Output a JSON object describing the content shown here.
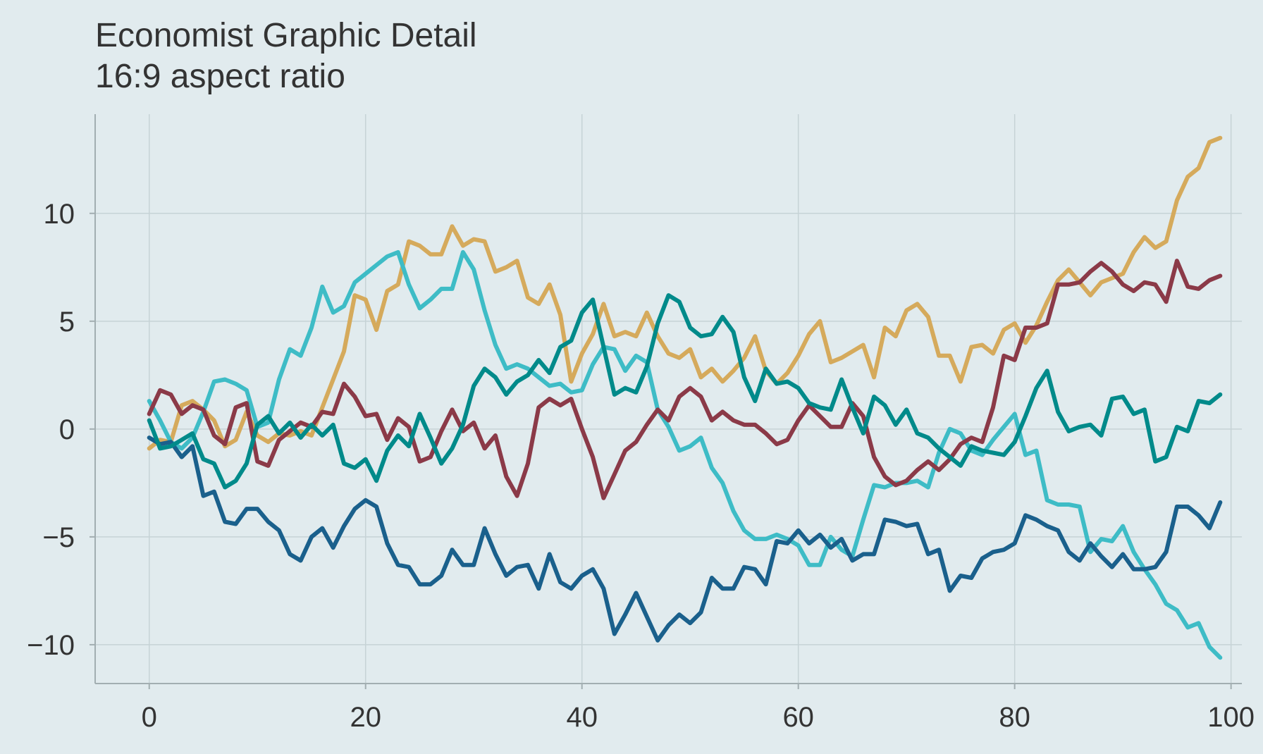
{
  "chart_data": {
    "type": "line",
    "title": "Economist Graphic Detail",
    "subtitle": "16:9 aspect ratio",
    "xlabel": "",
    "ylabel": "",
    "xlim": [
      -5,
      101
    ],
    "ylim": [
      -11.8,
      14.6
    ],
    "x_ticks": [
      0,
      20,
      40,
      60,
      80,
      100
    ],
    "y_ticks": [
      10,
      5,
      0,
      -5,
      -10
    ],
    "x_tick_labels": [
      "0",
      "20",
      "40",
      "60",
      "80",
      "100"
    ],
    "y_tick_labels": [
      "10",
      "5",
      "0",
      "−5",
      "−10"
    ],
    "grid": true,
    "legend": "none",
    "x": [
      0,
      1,
      2,
      3,
      4,
      5,
      6,
      7,
      8,
      9,
      10,
      11,
      12,
      13,
      14,
      15,
      16,
      17,
      18,
      19,
      20,
      21,
      22,
      23,
      24,
      25,
      26,
      27,
      28,
      29,
      30,
      31,
      32,
      33,
      34,
      35,
      36,
      37,
      38,
      39,
      40,
      41,
      42,
      43,
      44,
      45,
      46,
      47,
      48,
      49,
      50,
      51,
      52,
      53,
      54,
      55,
      56,
      57,
      58,
      59,
      60,
      61,
      62,
      63,
      64,
      65,
      66,
      67,
      68,
      69,
      70,
      71,
      72,
      73,
      74,
      75,
      76,
      77,
      78,
      79,
      80,
      81,
      82,
      83,
      84,
      85,
      86,
      87,
      88,
      89,
      90,
      91,
      92,
      93,
      94,
      95,
      96,
      97,
      98,
      99
    ],
    "series": [
      {
        "color": "#d5aa5c",
        "values": [
          -0.9,
          -0.5,
          -0.6,
          1.1,
          1.3,
          0.9,
          0.4,
          -0.8,
          -0.5,
          0.8,
          -0.3,
          -0.6,
          -0.2,
          -0.3,
          -0.1,
          -0.3,
          1.0,
          2.3,
          3.6,
          6.2,
          6.0,
          4.6,
          6.4,
          6.7,
          8.7,
          8.5,
          8.1,
          8.1,
          9.4,
          8.5,
          8.8,
          8.7,
          7.3,
          7.5,
          7.8,
          6.1,
          5.8,
          6.7,
          5.3,
          2.2,
          3.5,
          4.4,
          5.8,
          4.3,
          4.5,
          4.3,
          5.4,
          4.3,
          3.5,
          3.3,
          3.7,
          2.4,
          2.8,
          2.2,
          2.7,
          3.3,
          4.3,
          2.7,
          2.1,
          2.6,
          3.4,
          4.4,
          5.0,
          3.1,
          3.3,
          3.6,
          3.9,
          2.4,
          4.7,
          4.3,
          5.5,
          5.8,
          5.2,
          3.4,
          3.4,
          2.2,
          3.8,
          3.9,
          3.5,
          4.6,
          4.9,
          4.0,
          4.8,
          5.9,
          6.9,
          7.4,
          6.8,
          6.2,
          6.8,
          7.0,
          7.2,
          8.2,
          8.9,
          8.4,
          8.7,
          10.6,
          11.7,
          12.1,
          13.3,
          13.5
        ]
      },
      {
        "color": "#3ebcc6",
        "values": [
          1.3,
          0.4,
          -0.6,
          -0.9,
          -0.4,
          0.8,
          2.2,
          2.3,
          2.1,
          1.8,
          0.1,
          0.3,
          2.3,
          3.7,
          3.4,
          4.7,
          6.6,
          5.4,
          5.7,
          6.8,
          7.2,
          7.6,
          8.0,
          8.2,
          6.7,
          5.6,
          6.0,
          6.5,
          6.5,
          8.2,
          7.4,
          5.5,
          3.9,
          2.8,
          3.0,
          2.8,
          2.4,
          2.0,
          2.1,
          1.7,
          1.8,
          3.0,
          3.8,
          3.7,
          2.7,
          3.4,
          3.1,
          0.9,
          0.1,
          -1.0,
          -0.8,
          -0.4,
          -1.8,
          -2.5,
          -3.8,
          -4.7,
          -5.1,
          -5.1,
          -4.9,
          -5.1,
          -5.4,
          -6.3,
          -6.3,
          -5.0,
          -5.6,
          -5.9,
          -4.2,
          -2.6,
          -2.7,
          -2.5,
          -2.5,
          -2.4,
          -2.7,
          -1.1,
          0.0,
          -0.2,
          -1.0,
          -1.2,
          -0.5,
          0.1,
          0.7,
          -1.2,
          -1.0,
          -3.3,
          -3.5,
          -3.5,
          -3.6,
          -5.7,
          -5.1,
          -5.2,
          -4.5,
          -5.7,
          -6.5,
          -7.2,
          -8.1,
          -8.4,
          -9.2,
          -9.0,
          -10.1,
          -10.6
        ]
      },
      {
        "color": "#8b3a48",
        "values": [
          0.7,
          1.8,
          1.6,
          0.7,
          1.1,
          0.9,
          -0.3,
          -0.7,
          1.0,
          1.2,
          -1.5,
          -1.7,
          -0.5,
          -0.1,
          0.3,
          0.1,
          0.8,
          0.7,
          2.1,
          1.5,
          0.6,
          0.7,
          -0.5,
          0.5,
          0.1,
          -1.5,
          -1.3,
          -0.1,
          0.9,
          -0.1,
          0.3,
          -0.9,
          -0.3,
          -2.2,
          -3.1,
          -1.6,
          1.0,
          1.4,
          1.1,
          1.4,
          0.0,
          -1.3,
          -3.2,
          -2.1,
          -1.0,
          -0.6,
          0.2,
          0.9,
          0.4,
          1.5,
          1.9,
          1.5,
          0.4,
          0.8,
          0.4,
          0.2,
          0.2,
          -0.2,
          -0.7,
          -0.5,
          0.4,
          1.1,
          0.6,
          0.1,
          0.1,
          1.2,
          0.6,
          -1.3,
          -2.2,
          -2.6,
          -2.4,
          -1.9,
          -1.5,
          -1.9,
          -1.4,
          -0.7,
          -0.4,
          -0.6,
          1.0,
          3.4,
          3.2,
          4.7,
          4.7,
          4.9,
          6.7,
          6.7,
          6.8,
          7.3,
          7.7,
          7.3,
          6.7,
          6.4,
          6.8,
          6.7,
          5.9,
          7.8,
          6.6,
          6.5,
          6.9,
          7.1
        ]
      },
      {
        "color": "#1a608c",
        "values": [
          -0.4,
          -0.7,
          -0.6,
          -1.3,
          -0.8,
          -3.1,
          -2.9,
          -4.3,
          -4.4,
          -3.7,
          -3.7,
          -4.3,
          -4.7,
          -5.8,
          -6.1,
          -5.0,
          -4.6,
          -5.5,
          -4.5,
          -3.7,
          -3.3,
          -3.6,
          -5.3,
          -6.3,
          -6.4,
          -7.2,
          -7.2,
          -6.8,
          -5.6,
          -6.3,
          -6.3,
          -4.6,
          -5.8,
          -6.8,
          -6.4,
          -6.3,
          -7.4,
          -5.8,
          -7.1,
          -7.4,
          -6.8,
          -6.5,
          -7.4,
          -9.5,
          -8.6,
          -7.6,
          -8.7,
          -9.8,
          -9.1,
          -8.6,
          -9.0,
          -8.5,
          -6.9,
          -7.4,
          -7.4,
          -6.4,
          -6.5,
          -7.2,
          -5.2,
          -5.3,
          -4.7,
          -5.3,
          -4.9,
          -5.5,
          -5.1,
          -6.1,
          -5.8,
          -5.8,
          -4.2,
          -4.3,
          -4.5,
          -4.4,
          -5.8,
          -5.6,
          -7.5,
          -6.8,
          -6.9,
          -6.0,
          -5.7,
          -5.6,
          -5.3,
          -4.0,
          -4.2,
          -4.5,
          -4.7,
          -5.7,
          -6.1,
          -5.3,
          -5.9,
          -6.4,
          -5.8,
          -6.5,
          -6.5,
          -6.4,
          -5.7,
          -3.6,
          -3.6,
          -4.0,
          -4.6,
          -3.4
        ]
      },
      {
        "color": "#008a8a",
        "values": [
          0.4,
          -0.9,
          -0.8,
          -0.5,
          -0.2,
          -1.4,
          -1.6,
          -2.7,
          -2.4,
          -1.6,
          0.2,
          0.6,
          -0.2,
          0.3,
          -0.4,
          0.2,
          -0.3,
          0.2,
          -1.6,
          -1.8,
          -1.4,
          -2.4,
          -1.0,
          -0.3,
          -0.8,
          0.7,
          -0.4,
          -1.6,
          -0.9,
          0.2,
          2.0,
          2.8,
          2.4,
          1.6,
          2.2,
          2.5,
          3.2,
          2.6,
          3.8,
          4.1,
          5.4,
          6.0,
          3.8,
          1.6,
          1.9,
          1.7,
          2.9,
          4.9,
          6.2,
          5.9,
          4.7,
          4.3,
          4.4,
          5.2,
          4.5,
          2.4,
          1.3,
          2.8,
          2.1,
          2.2,
          1.9,
          1.2,
          1.0,
          0.9,
          2.3,
          1.0,
          -0.2,
          1.5,
          1.1,
          0.2,
          0.9,
          -0.2,
          -0.4,
          -0.9,
          -1.3,
          -1.7,
          -0.8,
          -1.0,
          -1.1,
          -1.2,
          -0.6,
          0.6,
          1.9,
          2.7,
          0.8,
          -0.1,
          0.1,
          0.2,
          -0.3,
          1.4,
          1.5,
          0.7,
          0.9,
          -1.5,
          -1.3,
          0.1,
          -0.1,
          1.3,
          1.2,
          1.6
        ]
      }
    ]
  }
}
